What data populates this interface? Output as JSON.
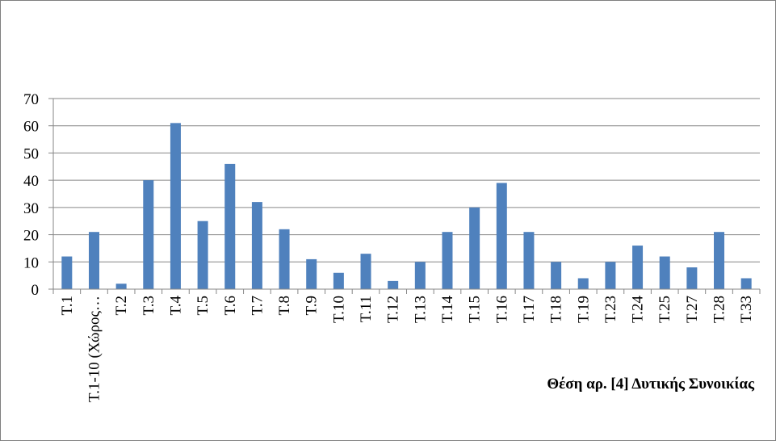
{
  "chart_data": {
    "type": "bar",
    "annotation": "Θέση αρ. [4] Δυτικής Συνοικίας",
    "categories": [
      "Τ.1",
      "Τ.1-10 (Χώρος…",
      "Τ.2",
      "Τ.3",
      "Τ.4",
      "Τ.5",
      "Τ.6",
      "Τ.7",
      "Τ.8",
      "Τ.9",
      "Τ.10",
      "Τ.11",
      "Τ.12",
      "Τ.13",
      "Τ.14",
      "Τ.15",
      "Τ.16",
      "Τ.17",
      "Τ.18",
      "Τ.19",
      "Τ.23",
      "Τ.24",
      "Τ.25",
      "Τ.27",
      "Τ.28",
      "Τ.33"
    ],
    "values": [
      12,
      21,
      2,
      40,
      61,
      25,
      46,
      32,
      22,
      11,
      6,
      13,
      3,
      10,
      21,
      30,
      39,
      21,
      10,
      4,
      10,
      16,
      12,
      8,
      21,
      4
    ],
    "ylim": [
      0,
      70
    ],
    "yticks": [
      0,
      10,
      20,
      30,
      40,
      50,
      60,
      70
    ],
    "grid": true,
    "legend": "none",
    "bar_color": "#4f81bd",
    "grid_color": "#868686"
  }
}
